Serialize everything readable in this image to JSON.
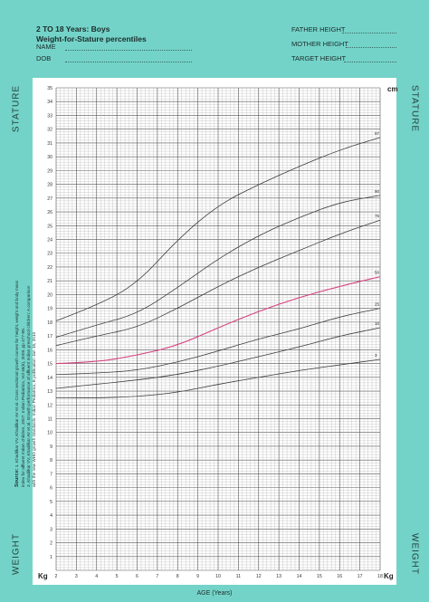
{
  "header": {
    "title_line1": "2 TO 18 Years: Boys",
    "title_line2": "Weight-for-Stature percentiles",
    "name_label": "NAME",
    "dob_label": "DOB",
    "father_label": "FATHER HEIGHT",
    "mother_label": "MOTHER HEIGHT",
    "target_label": "TARGET HEIGHT"
  },
  "side": {
    "stature_left": "STATURE",
    "stature_right": "STATURE",
    "weight_left": "WEIGHT",
    "weight_right": "WEIGHT",
    "kg_left": "Kg",
    "kg_right": "Kg",
    "cm": "cm"
  },
  "source": {
    "title": "Source:",
    "line1": "1. Khadilkar VV, Khadilkar AV et al. Cross sectional growth curves for height, weight and body mass index for affluent Indian children, 2007. Indian Pediatrics, Vol 46(6), 2009. pp 477-89.",
    "line2": "2. Khadilkar VV, Khadilkar AV et al. Growth performance of affluent Indian preschool children: A comparison with the new WHO growth standards. Indian Pediatrics, E publication Jan 15, 2010"
  },
  "colors": {
    "background": "#74d3c8",
    "grid_minor": "#9a9a9a",
    "grid_major": "#555555",
    "curve": "#3d3d3d",
    "p50_curve": "#d6407e"
  },
  "chart_data": {
    "type": "line",
    "xlabel": "AGE (Years)",
    "xlim": [
      2,
      18
    ],
    "x_ticks": [
      2,
      3,
      4,
      5,
      6,
      7,
      8,
      9,
      10,
      11,
      12,
      13,
      14,
      15,
      16,
      17,
      18
    ],
    "ylim": [
      0,
      35
    ],
    "y_ticks": [
      1,
      2,
      3,
      4,
      5,
      6,
      7,
      8,
      9,
      10,
      11,
      12,
      13,
      14,
      15,
      16,
      17,
      18,
      19,
      20,
      21,
      22,
      23,
      24,
      25,
      26,
      27,
      28,
      29,
      30,
      31,
      32,
      33,
      34,
      35
    ],
    "grid": true,
    "x": [
      2,
      4,
      6,
      8,
      10,
      12,
      14,
      16,
      18
    ],
    "series": [
      {
        "name": "97",
        "values": [
          18.1,
          19.2,
          20.8,
          24.0,
          26.5,
          28.0,
          29.3,
          30.5,
          31.4
        ]
      },
      {
        "name": "90",
        "values": [
          16.9,
          17.8,
          18.6,
          20.5,
          22.6,
          24.3,
          25.6,
          26.7,
          27.2
        ]
      },
      {
        "name": "75",
        "values": [
          16.3,
          17.0,
          17.6,
          19.0,
          20.6,
          22.0,
          23.2,
          24.4,
          25.4
        ]
      },
      {
        "name": "50",
        "values": [
          15.0,
          15.1,
          15.6,
          16.3,
          17.6,
          18.8,
          19.8,
          20.6,
          21.3
        ]
      },
      {
        "name": "25",
        "values": [
          14.2,
          14.3,
          14.5,
          15.1,
          15.9,
          16.8,
          17.5,
          18.4,
          19.0
        ]
      },
      {
        "name": "10",
        "values": [
          13.2,
          13.5,
          13.8,
          14.2,
          14.8,
          15.5,
          16.2,
          17.0,
          17.6
        ]
      },
      {
        "name": "3",
        "values": [
          12.5,
          12.5,
          12.6,
          12.9,
          13.5,
          14.0,
          14.5,
          14.9,
          15.3
        ]
      }
    ],
    "p50_series": "50"
  }
}
